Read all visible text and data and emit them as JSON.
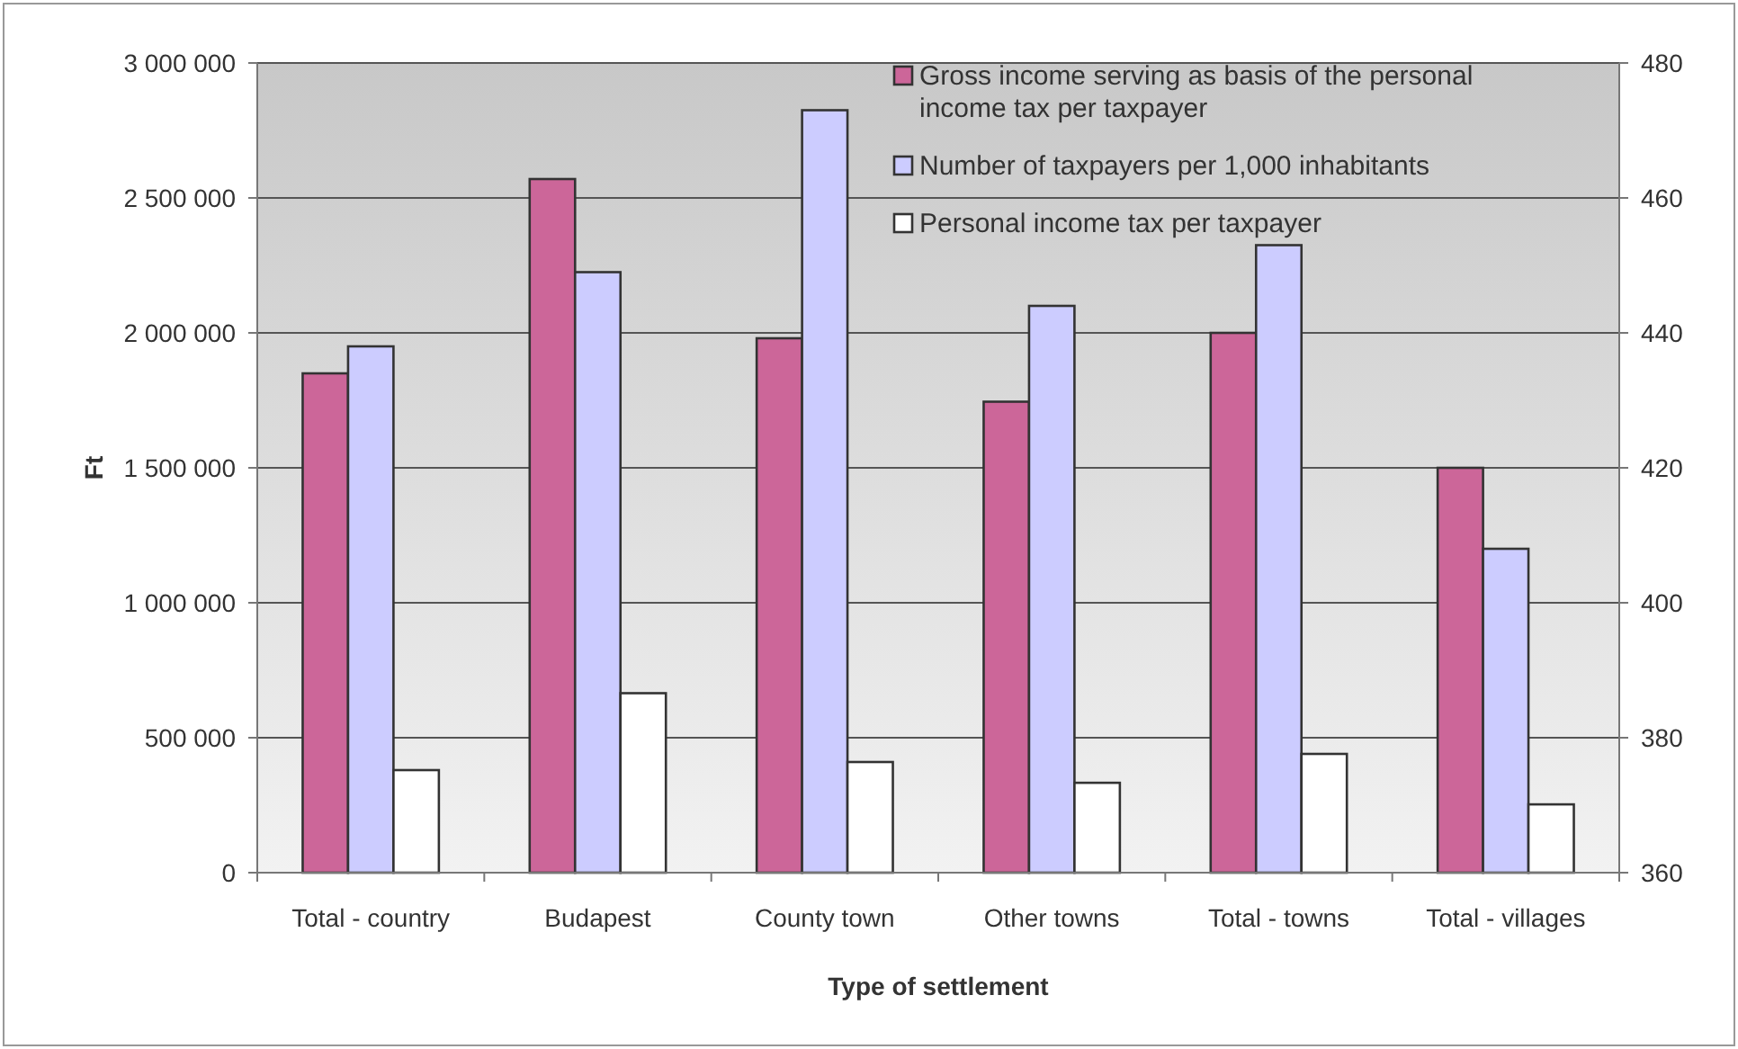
{
  "chart_data": {
    "type": "bar",
    "xlabel": "Type of settlement",
    "ylabel": "Ft",
    "categories": [
      "Total - country",
      "Budapest",
      "County town",
      "Other towns",
      "Total - towns",
      "Total - villages"
    ],
    "series": [
      {
        "name": "Gross income serving as basis of the personal income tax per taxpayer",
        "color": "#cc6699",
        "values": [
          1850000,
          2570000,
          1980000,
          1745000,
          2000000,
          1500000
        ]
      },
      {
        "name": "Number of taxpayers per 1,000 inhabitants",
        "color": "#ccccff",
        "axis": "y2",
        "values": [
          438,
          449,
          473,
          444,
          453,
          408
        ]
      },
      {
        "name": "Personal income tax per taxpayer",
        "color": "#ffffff",
        "values": [
          380000,
          665000,
          410000,
          333000,
          440000,
          253000
        ]
      }
    ],
    "ylim": [
      0,
      3000000
    ],
    "yticks": [
      {
        "value": 0,
        "label": "0"
      },
      {
        "value": 500000,
        "label": "500 000"
      },
      {
        "value": 1000000,
        "label": "1 000 000"
      },
      {
        "value": 1500000,
        "label": "1 500 000"
      },
      {
        "value": 2000000,
        "label": "2 000 000"
      },
      {
        "value": 2500000,
        "label": "2 500 000"
      },
      {
        "value": 3000000,
        "label": "3 000 000"
      }
    ],
    "y2lim": [
      360,
      480
    ],
    "y2ticks": [
      360,
      380,
      400,
      420,
      440,
      460,
      480
    ],
    "grid": "y",
    "legend": "top right"
  }
}
